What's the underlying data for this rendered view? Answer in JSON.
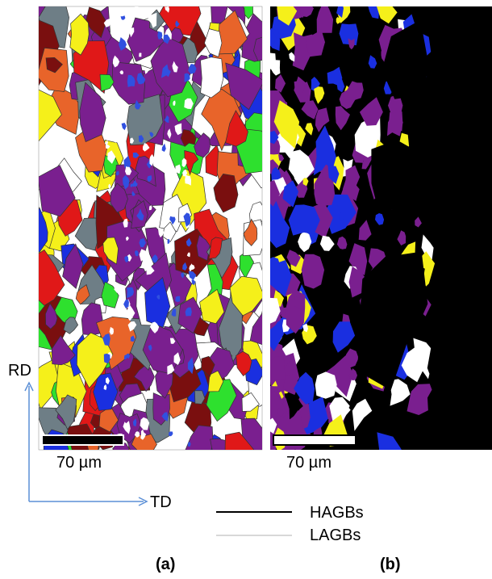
{
  "panels": [
    {
      "label": "(a)",
      "scale_bar": "70 µm"
    },
    {
      "label": "(b)",
      "scale_bar": "70 µm"
    }
  ],
  "axes": {
    "rd": "RD",
    "td": "TD"
  },
  "legend": [
    {
      "label": "HAGBs"
    },
    {
      "label": "LAGBs"
    }
  ]
}
